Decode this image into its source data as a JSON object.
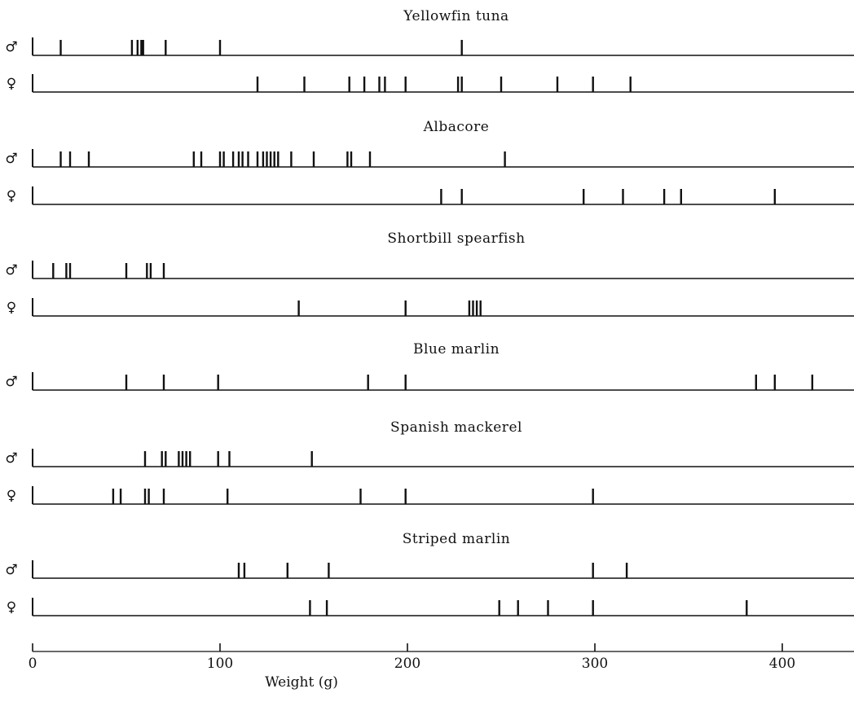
{
  "chart_data": {
    "type": "strip",
    "xlabel": "Weight (g)",
    "xlim": [
      0,
      436
    ],
    "xticks": [
      "0",
      "100",
      "200",
      "300",
      "400"
    ],
    "symbols": {
      "male": "♂",
      "female": "♀"
    },
    "panels": [
      {
        "title": "Yellowfin tuna",
        "rows": [
          {
            "sex": "male",
            "values": [
              15,
              53,
              56,
              58,
              59,
              71,
              100,
              229
            ]
          },
          {
            "sex": "female",
            "values": [
              120,
              145,
              169,
              177,
              185,
              188,
              199,
              227,
              229,
              250,
              280,
              299,
              319
            ]
          }
        ]
      },
      {
        "title": "Albacore",
        "rows": [
          {
            "sex": "male",
            "values": [
              15,
              20,
              30,
              86,
              90,
              100,
              102,
              107,
              110,
              112,
              115,
              120,
              123,
              125,
              127,
              129,
              131,
              138,
              150,
              168,
              170,
              180,
              252
            ]
          },
          {
            "sex": "female",
            "values": [
              218,
              229,
              294,
              315,
              337,
              346,
              396
            ]
          }
        ]
      },
      {
        "title": "Shortbill spearfish",
        "rows": [
          {
            "sex": "male",
            "values": [
              11,
              18,
              20,
              50,
              61,
              63,
              70
            ]
          },
          {
            "sex": "female",
            "values": [
              142,
              199,
              233,
              235,
              237,
              239
            ]
          }
        ]
      },
      {
        "title": "Blue marlin",
        "rows": [
          {
            "sex": "male",
            "values": [
              50,
              70,
              99,
              179,
              199,
              386,
              396,
              416
            ]
          }
        ]
      },
      {
        "title": "Spanish mackerel",
        "rows": [
          {
            "sex": "male",
            "values": [
              60,
              69,
              71,
              78,
              80,
              82,
              84,
              99,
              105,
              149
            ]
          },
          {
            "sex": "female",
            "values": [
              43,
              47,
              60,
              62,
              70,
              104,
              175,
              199,
              299
            ]
          }
        ]
      },
      {
        "title": "Striped marlin",
        "rows": [
          {
            "sex": "male",
            "values": [
              110,
              113,
              136,
              158,
              299,
              317
            ]
          },
          {
            "sex": "female",
            "values": [
              148,
              157,
              249,
              259,
              275,
              299,
              381
            ]
          }
        ]
      }
    ]
  }
}
